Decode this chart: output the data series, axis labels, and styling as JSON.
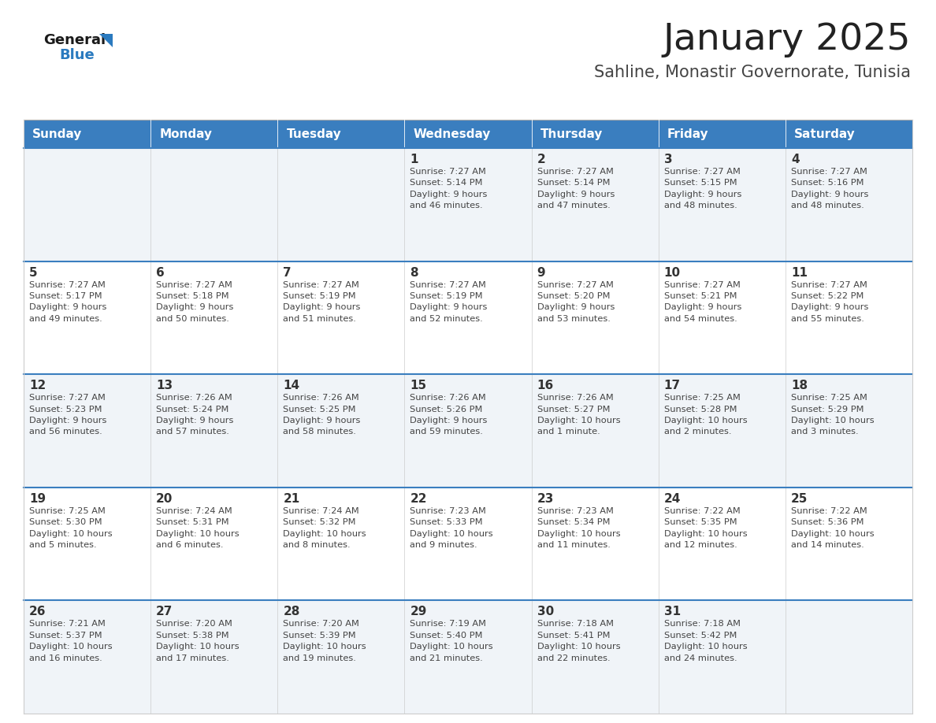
{
  "title": "January 2025",
  "subtitle": "Sahline, Monastir Governorate, Tunisia",
  "header_color": "#3a7ebf",
  "header_text_color": "#ffffff",
  "cell_bg_light": "#f0f4f8",
  "cell_bg_white": "#ffffff",
  "day_text_color": "#333333",
  "info_text_color": "#444444",
  "title_color": "#222222",
  "subtitle_color": "#444444",
  "separator_color": "#3a7ebf",
  "col_separator_color": "#cccccc",
  "days_of_week": [
    "Sunday",
    "Monday",
    "Tuesday",
    "Wednesday",
    "Thursday",
    "Friday",
    "Saturday"
  ],
  "weeks": [
    [
      {
        "day": "",
        "info": ""
      },
      {
        "day": "",
        "info": ""
      },
      {
        "day": "",
        "info": ""
      },
      {
        "day": "1",
        "info": "Sunrise: 7:27 AM\nSunset: 5:14 PM\nDaylight: 9 hours\nand 46 minutes."
      },
      {
        "day": "2",
        "info": "Sunrise: 7:27 AM\nSunset: 5:14 PM\nDaylight: 9 hours\nand 47 minutes."
      },
      {
        "day": "3",
        "info": "Sunrise: 7:27 AM\nSunset: 5:15 PM\nDaylight: 9 hours\nand 48 minutes."
      },
      {
        "day": "4",
        "info": "Sunrise: 7:27 AM\nSunset: 5:16 PM\nDaylight: 9 hours\nand 48 minutes."
      }
    ],
    [
      {
        "day": "5",
        "info": "Sunrise: 7:27 AM\nSunset: 5:17 PM\nDaylight: 9 hours\nand 49 minutes."
      },
      {
        "day": "6",
        "info": "Sunrise: 7:27 AM\nSunset: 5:18 PM\nDaylight: 9 hours\nand 50 minutes."
      },
      {
        "day": "7",
        "info": "Sunrise: 7:27 AM\nSunset: 5:19 PM\nDaylight: 9 hours\nand 51 minutes."
      },
      {
        "day": "8",
        "info": "Sunrise: 7:27 AM\nSunset: 5:19 PM\nDaylight: 9 hours\nand 52 minutes."
      },
      {
        "day": "9",
        "info": "Sunrise: 7:27 AM\nSunset: 5:20 PM\nDaylight: 9 hours\nand 53 minutes."
      },
      {
        "day": "10",
        "info": "Sunrise: 7:27 AM\nSunset: 5:21 PM\nDaylight: 9 hours\nand 54 minutes."
      },
      {
        "day": "11",
        "info": "Sunrise: 7:27 AM\nSunset: 5:22 PM\nDaylight: 9 hours\nand 55 minutes."
      }
    ],
    [
      {
        "day": "12",
        "info": "Sunrise: 7:27 AM\nSunset: 5:23 PM\nDaylight: 9 hours\nand 56 minutes."
      },
      {
        "day": "13",
        "info": "Sunrise: 7:26 AM\nSunset: 5:24 PM\nDaylight: 9 hours\nand 57 minutes."
      },
      {
        "day": "14",
        "info": "Sunrise: 7:26 AM\nSunset: 5:25 PM\nDaylight: 9 hours\nand 58 minutes."
      },
      {
        "day": "15",
        "info": "Sunrise: 7:26 AM\nSunset: 5:26 PM\nDaylight: 9 hours\nand 59 minutes."
      },
      {
        "day": "16",
        "info": "Sunrise: 7:26 AM\nSunset: 5:27 PM\nDaylight: 10 hours\nand 1 minute."
      },
      {
        "day": "17",
        "info": "Sunrise: 7:25 AM\nSunset: 5:28 PM\nDaylight: 10 hours\nand 2 minutes."
      },
      {
        "day": "18",
        "info": "Sunrise: 7:25 AM\nSunset: 5:29 PM\nDaylight: 10 hours\nand 3 minutes."
      }
    ],
    [
      {
        "day": "19",
        "info": "Sunrise: 7:25 AM\nSunset: 5:30 PM\nDaylight: 10 hours\nand 5 minutes."
      },
      {
        "day": "20",
        "info": "Sunrise: 7:24 AM\nSunset: 5:31 PM\nDaylight: 10 hours\nand 6 minutes."
      },
      {
        "day": "21",
        "info": "Sunrise: 7:24 AM\nSunset: 5:32 PM\nDaylight: 10 hours\nand 8 minutes."
      },
      {
        "day": "22",
        "info": "Sunrise: 7:23 AM\nSunset: 5:33 PM\nDaylight: 10 hours\nand 9 minutes."
      },
      {
        "day": "23",
        "info": "Sunrise: 7:23 AM\nSunset: 5:34 PM\nDaylight: 10 hours\nand 11 minutes."
      },
      {
        "day": "24",
        "info": "Sunrise: 7:22 AM\nSunset: 5:35 PM\nDaylight: 10 hours\nand 12 minutes."
      },
      {
        "day": "25",
        "info": "Sunrise: 7:22 AM\nSunset: 5:36 PM\nDaylight: 10 hours\nand 14 minutes."
      }
    ],
    [
      {
        "day": "26",
        "info": "Sunrise: 7:21 AM\nSunset: 5:37 PM\nDaylight: 10 hours\nand 16 minutes."
      },
      {
        "day": "27",
        "info": "Sunrise: 7:20 AM\nSunset: 5:38 PM\nDaylight: 10 hours\nand 17 minutes."
      },
      {
        "day": "28",
        "info": "Sunrise: 7:20 AM\nSunset: 5:39 PM\nDaylight: 10 hours\nand 19 minutes."
      },
      {
        "day": "29",
        "info": "Sunrise: 7:19 AM\nSunset: 5:40 PM\nDaylight: 10 hours\nand 21 minutes."
      },
      {
        "day": "30",
        "info": "Sunrise: 7:18 AM\nSunset: 5:41 PM\nDaylight: 10 hours\nand 22 minutes."
      },
      {
        "day": "31",
        "info": "Sunrise: 7:18 AM\nSunset: 5:42 PM\nDaylight: 10 hours\nand 24 minutes."
      },
      {
        "day": "",
        "info": ""
      }
    ]
  ],
  "logo_general_color": "#1a1a1a",
  "logo_blue_color": "#2a7abf",
  "logo_triangle_color": "#2a7abf",
  "fig_width": 11.88,
  "fig_height": 9.18,
  "dpi": 100
}
